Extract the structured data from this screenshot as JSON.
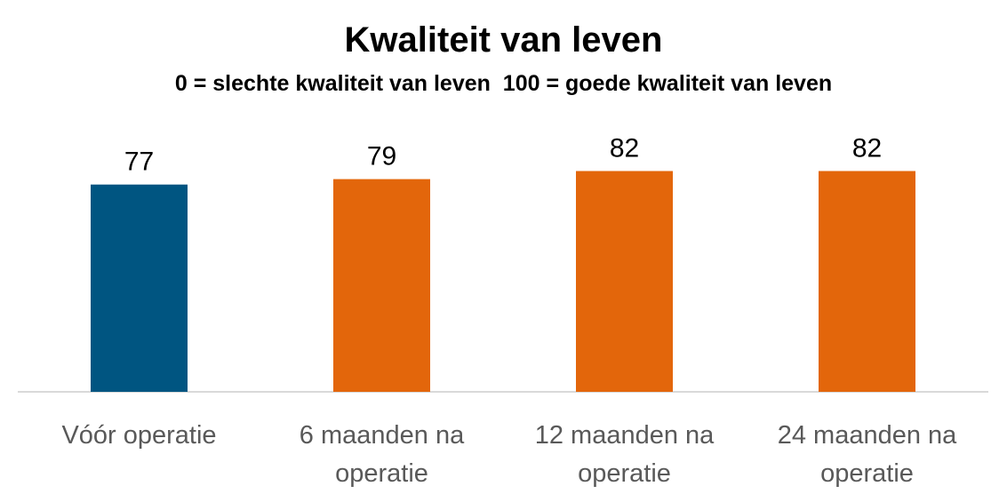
{
  "chart_data": {
    "type": "bar",
    "title": "Kwaliteit van leven",
    "subtitle": "0 = slechte kwaliteit van leven  100 = goede kwaliteit van leven",
    "categories": [
      [
        "Vóór operatie"
      ],
      [
        "6 maanden na",
        "operatie"
      ],
      [
        "12 maanden na",
        "operatie"
      ],
      [
        "24 maanden na",
        "operatie"
      ]
    ],
    "values": [
      77,
      79,
      82,
      82
    ],
    "value_labels": [
      "77",
      "79",
      "82",
      "82"
    ],
    "bar_colors": [
      "#005581",
      "#e3660b",
      "#e3660b",
      "#e3660b"
    ],
    "ylim": [
      0,
      100
    ],
    "grid": false,
    "legend": "none",
    "axis_color": "#d9d9d9"
  }
}
